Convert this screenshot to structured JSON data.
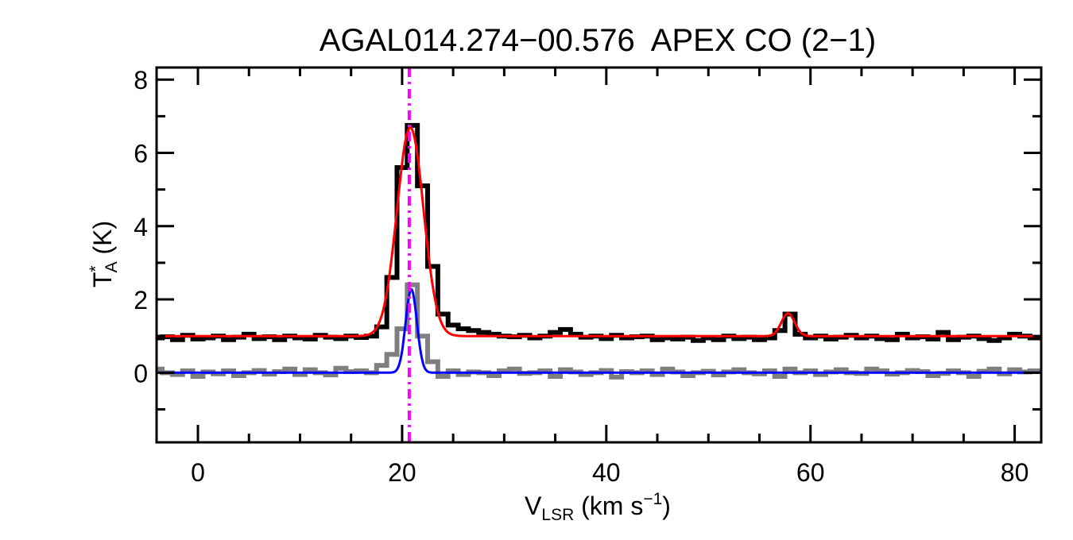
{
  "chart_data": {
    "type": "line",
    "title": "AGAL014.274−00.576  APEX CO (2−1)",
    "xlabel": {
      "main": "V",
      "sub": "LSR",
      "rest": " (km s",
      "sup": "−1",
      "end": ")"
    },
    "ylabel": {
      "main": "T",
      "sup": "*",
      "sub": "A",
      "rest": " (K)"
    },
    "xlim": [
      -4.05,
      82.6
    ],
    "ylim": [
      -1.9,
      8.33
    ],
    "xticks": [
      0,
      20,
      40,
      60,
      80
    ],
    "xtick_labels": [
      "0",
      "20",
      "40",
      "60",
      "80"
    ],
    "x_minor_step": 5,
    "yticks": [
      0,
      2,
      4,
      6,
      8
    ],
    "ytick_labels": [
      "0",
      "2",
      "4",
      "6",
      "8"
    ],
    "y_minor_step": 1,
    "grid": false,
    "x": [
      -4,
      -3,
      -2,
      -1,
      0,
      1,
      2,
      3,
      4,
      5,
      6,
      7,
      8,
      9,
      10,
      11,
      12,
      13,
      14,
      15,
      16,
      17,
      18,
      19,
      20,
      21,
      22,
      23,
      24,
      25,
      26,
      27,
      28,
      29,
      30,
      31,
      32,
      33,
      34,
      35,
      36,
      37,
      38,
      39,
      40,
      41,
      42,
      43,
      44,
      45,
      46,
      47,
      48,
      49,
      50,
      51,
      52,
      53,
      54,
      55,
      56,
      57,
      58,
      59,
      60,
      61,
      62,
      63,
      64,
      65,
      66,
      67,
      68,
      69,
      70,
      71,
      72,
      73,
      74,
      75,
      76,
      77,
      78,
      79,
      80,
      81,
      82
    ],
    "series": [
      {
        "style": "histogram",
        "color": "#000000",
        "values": [
          0.95,
          0.98,
          0.9,
          1.02,
          0.92,
          0.95,
          1.0,
          0.9,
          0.97,
          1.05,
          0.93,
          0.98,
          0.9,
          1.0,
          0.95,
          0.92,
          1.02,
          0.97,
          0.93,
          1.0,
          0.96,
          1.0,
          1.25,
          2.6,
          5.6,
          6.75,
          5.1,
          2.9,
          1.6,
          1.3,
          1.2,
          1.15,
          1.1,
          1.05,
          1.0,
          0.98,
          1.02,
          0.95,
          1.0,
          1.1,
          1.18,
          1.05,
          0.97,
          1.0,
          0.93,
          1.02,
          0.95,
          0.98,
          1.0,
          0.9,
          0.95,
          0.92,
          0.97,
          0.88,
          0.95,
          0.9,
          1.0,
          0.93,
          0.97,
          0.9,
          0.95,
          1.15,
          1.6,
          1.05,
          0.95,
          1.0,
          0.92,
          0.97,
          1.02,
          0.95,
          1.0,
          0.93,
          0.9,
          1.05,
          0.95,
          0.98,
          0.92,
          1.1,
          0.9,
          0.97,
          1.0,
          0.93,
          0.88,
          0.95,
          1.05,
          1.0,
          0.95
        ]
      },
      {
        "style": "histogram",
        "color": "#7f7f7f",
        "values": [
          0.1,
          0.0,
          -0.05,
          0.05,
          -0.1,
          0.02,
          -0.03,
          0.05,
          -0.08,
          0.0,
          0.06,
          -0.04,
          0.03,
          0.1,
          -0.05,
          0.08,
          0.0,
          -0.06,
          0.12,
          0.03,
          0.05,
          0.0,
          0.2,
          0.5,
          1.2,
          2.4,
          1.0,
          0.3,
          -0.1,
          0.05,
          -0.05,
          0.02,
          0.0,
          -0.08,
          0.05,
          0.1,
          -0.02,
          0.0,
          0.05,
          -0.1,
          0.08,
          0.02,
          -0.05,
          0.0,
          0.06,
          -0.12,
          0.03,
          0.0,
          0.05,
          -0.05,
          0.1,
          0.02,
          -0.08,
          0.0,
          0.04,
          -0.06,
          0.02,
          0.08,
          0.0,
          -0.03,
          0.05,
          -0.1,
          0.1,
          0.0,
          0.05,
          -0.05,
          0.02,
          0.08,
          0.0,
          -0.02,
          0.1,
          0.05,
          -0.04,
          0.0,
          0.06,
          0.03,
          -0.08,
          -0.02,
          0.05,
          0.0,
          -0.1,
          0.04,
          0.1,
          -0.03,
          0.08,
          0.02,
          0.05
        ]
      }
    ],
    "fits": [
      {
        "color": "#ff0000",
        "baseline": 1.0,
        "components": [
          {
            "amp": 5.7,
            "center": 20.8,
            "sigma": 1.3
          },
          {
            "amp": 0.62,
            "center": 57.8,
            "sigma": 0.65
          }
        ]
      },
      {
        "color": "#0000ff",
        "baseline": 0.0,
        "components": [
          {
            "amp": 2.28,
            "center": 20.9,
            "sigma": 0.55
          }
        ]
      }
    ],
    "vline": {
      "x": 20.7,
      "color": "#ff00ff",
      "style": "dash-dot"
    }
  }
}
